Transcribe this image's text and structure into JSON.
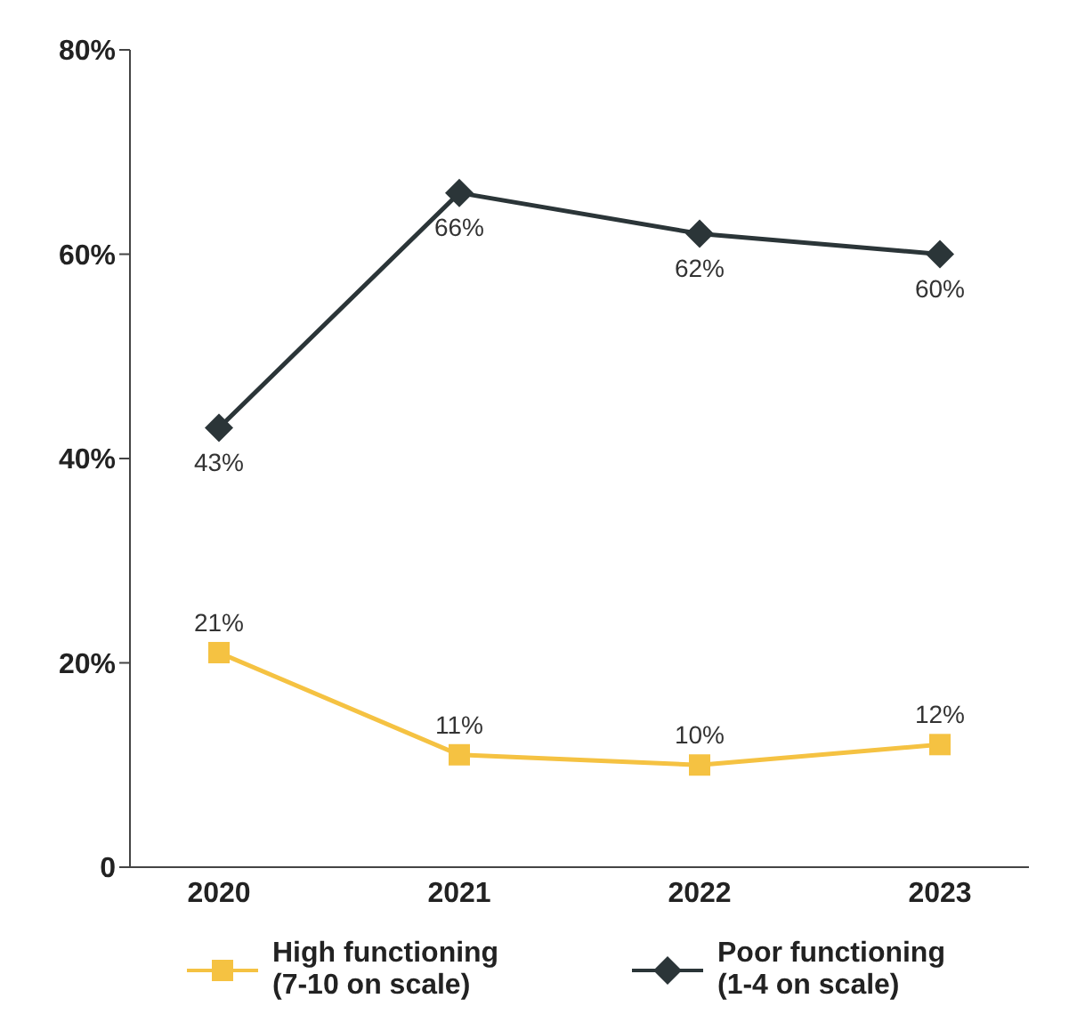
{
  "chart_data": {
    "type": "line",
    "categories": [
      "2020",
      "2021",
      "2022",
      "2023"
    ],
    "series": [
      {
        "name": "High functioning (7-10 on scale)",
        "color": "#f5c242",
        "values": [
          21,
          11,
          10,
          12
        ],
        "value_labels": [
          "21%",
          "11%",
          "10%",
          "12%"
        ],
        "marker": "square"
      },
      {
        "name": "Poor functioning (1-4 on scale)",
        "color": "#2b3538",
        "values": [
          43,
          66,
          62,
          60
        ],
        "value_labels": [
          "43%",
          "66%",
          "62%",
          "60%"
        ],
        "marker": "diamond"
      }
    ],
    "ylim": [
      0,
      80
    ],
    "yticks": [
      {
        "value": 0,
        "label": "0"
      },
      {
        "value": 20,
        "label": "20%"
      },
      {
        "value": 40,
        "label": "40%"
      },
      {
        "value": 60,
        "label": "60%"
      },
      {
        "value": 80,
        "label": "80%"
      }
    ],
    "grid": false,
    "legend": "bottom"
  }
}
